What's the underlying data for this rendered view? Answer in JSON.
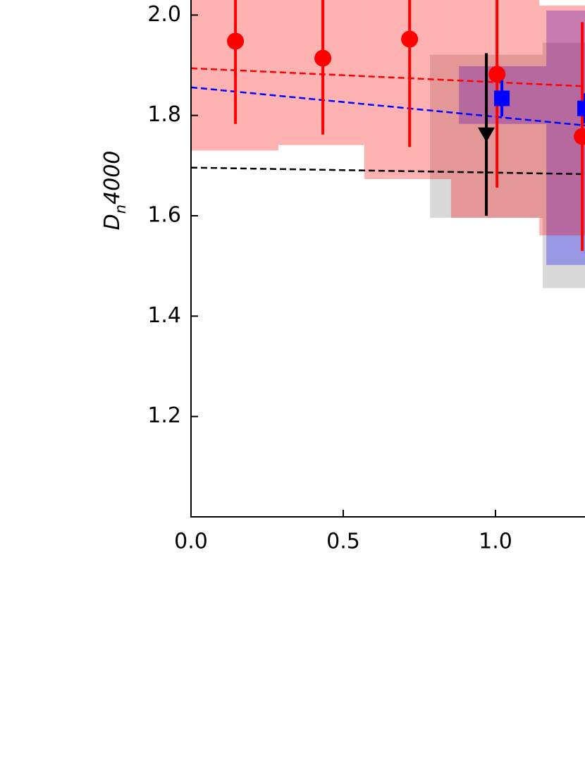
{
  "chart_data": {
    "type": "scatter",
    "ylabel": {
      "main": "D",
      "sub": "n",
      "rest": "4000"
    },
    "xlim": [
      0,
      1.294
    ],
    "ylim": [
      1.0,
      2.03
    ],
    "xticks": [
      {
        "value": 0,
        "label": "0.0"
      },
      0.5,
      {
        "value": 1,
        "label": "1.0"
      }
    ],
    "yticks": [
      1.2,
      1.4,
      1.6,
      1.8,
      {
        "value": 2,
        "label": "2.0"
      }
    ],
    "bands": [
      {
        "color": "rgba(128,128,128,0.3)",
        "edges": [
          0.785,
          1.155,
          1.294
        ],
        "lo": [
          1.596,
          1.456
        ],
        "hi": [
          1.921,
          1.945
        ]
      },
      {
        "color": "rgba(0,0,255,0.3)",
        "edges": [
          0.88,
          1.167,
          1.294
        ],
        "lo": [
          1.783,
          1.502
        ],
        "hi": [
          1.898,
          2.009
        ]
      },
      {
        "color": "rgba(255,0,0,0.3)",
        "edges": [
          0,
          0.287,
          0.569,
          0.854,
          1.144,
          1.294
        ],
        "lo": [
          1.73,
          1.741,
          1.673,
          1.596,
          1.561
        ],
        "hi": [
          2.1,
          2.1,
          2.1,
          2.1,
          2.019
        ]
      }
    ],
    "fits": [
      {
        "color": "red",
        "x": [
          0,
          1.294
        ],
        "values": [
          1.894,
          1.858
        ]
      },
      {
        "color": "blue",
        "x": [
          0,
          1.294
        ],
        "values": [
          1.856,
          1.78
        ]
      },
      {
        "color": "black",
        "x": [
          0,
          1.294
        ],
        "values": [
          1.696,
          1.683
        ]
      }
    ],
    "series": [
      {
        "marker": "circle",
        "color": "red",
        "x": [
          0.146,
          0.433,
          0.718,
          1.005,
          1.285
        ],
        "values": [
          1.948,
          1.914,
          1.952,
          1.882,
          1.758
        ],
        "errors": [
          0.165,
          0.152,
          0.215,
          0.226,
          0.228
        ]
      },
      {
        "marker": "square",
        "color": "blue",
        "x": [
          1.021,
          1.294
        ],
        "values": [
          1.834,
          1.814
        ],
        "errors": [
          0.036,
          0.03
        ]
      },
      {
        "marker": "triangle",
        "color": "black",
        "x": [
          0.97
        ],
        "values": [
          1.762
        ],
        "errors": [
          0.162
        ]
      }
    ]
  }
}
